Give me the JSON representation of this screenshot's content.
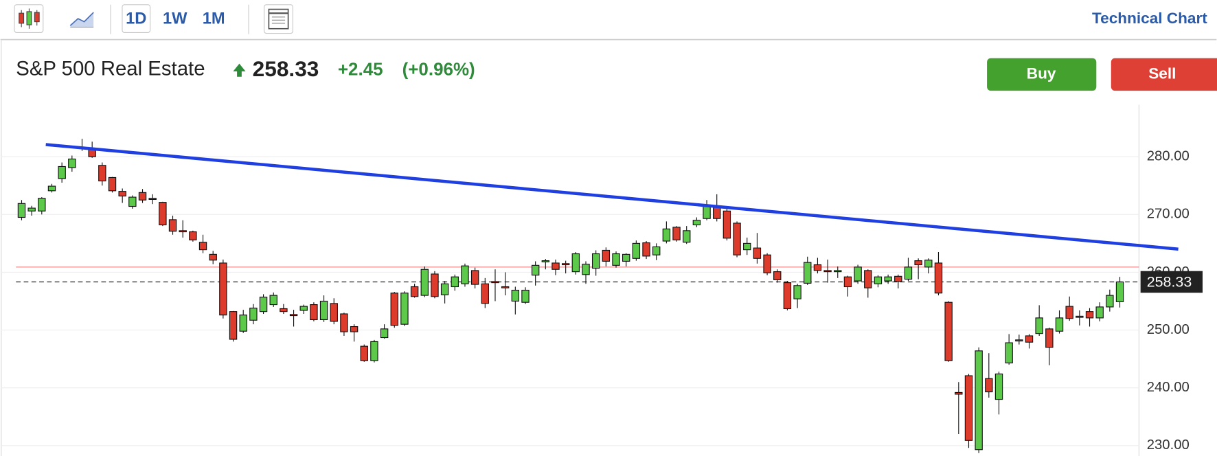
{
  "toolbar": {
    "ranges": [
      "1D",
      "1W",
      "1M"
    ],
    "link": "Technical Chart"
  },
  "header": {
    "name": "S&P 500 Real Estate",
    "change": "+2.45",
    "change_pct": "(+0.96%)"
  },
  "actions": [
    "Buy",
    "Sell"
  ],
  "chart_data": {
    "type": "candlestick",
    "up_color": "#5cc94a",
    "down_color": "#dd3b2c",
    "open": [
      269.5,
      270.6,
      270.6,
      274.1,
      276.2,
      278.1,
      281.6,
      281.3,
      278.5,
      276.4,
      274,
      271.4,
      273.8,
      272.8,
      272.1,
      269.1,
      267.2,
      267,
      265.2,
      263.1,
      261.6,
      253.2,
      249.8,
      251.7,
      253.2,
      254.4,
      253.7,
      252.7,
      253.4,
      254.4,
      251.8,
      254.6,
      252.8,
      250.6,
      247.2,
      244.7,
      248.7,
      256.4,
      251,
      257.5,
      256,
      259.7,
      256.1,
      257.5,
      258,
      260.3,
      258,
      258.4,
      257.5,
      255,
      254.8,
      259.5,
      262,
      261.6,
      261.5,
      260.1,
      259.6,
      260.7,
      263.8,
      261.2,
      261.9,
      262.4,
      265.1,
      263,
      265.4,
      267.8,
      265.2,
      268.2,
      269.3,
      271.5,
      270.6,
      268.5,
      263.9,
      264.2,
      263,
      260.1,
      258.2,
      255.4,
      258.1,
      261.3,
      260.3,
      260.3,
      259.2,
      258.5,
      260.3,
      258,
      258.5,
      259.3,
      258.8,
      262,
      260.9,
      261.6,
      254.8,
      239.2,
      242.1,
      229.3,
      241.6,
      238,
      244.3,
      248.3,
      249,
      249.4,
      250.2,
      249.8,
      254.1,
      252.4,
      253.2,
      252.1,
      254,
      254.9
    ],
    "high": [
      272.5,
      271.5,
      273,
      275.3,
      279,
      280.2,
      283.1,
      282.6,
      279,
      276.5,
      274.5,
      273.3,
      274.4,
      273.5,
      272.2,
      269.8,
      269,
      267.2,
      266.5,
      263.7,
      262.2,
      253.3,
      253.5,
      254.5,
      256.2,
      256.5,
      254.5,
      253.5,
      254.4,
      254.8,
      256,
      255.5,
      253,
      251,
      247.5,
      248.3,
      251,
      256.6,
      256.7,
      258,
      261,
      260.2,
      258.5,
      259.6,
      261.5,
      260.8,
      259,
      260.5,
      260,
      257.5,
      257.4,
      261.9,
      262.3,
      262.2,
      262,
      263.5,
      261.9,
      263.8,
      264.3,
      263.6,
      263.3,
      265.5,
      265.4,
      265,
      268.8,
      268,
      268,
      269.5,
      272.5,
      273.5,
      271.2,
      268.8,
      266,
      266.8,
      263.3,
      260.5,
      258.5,
      258,
      262.7,
      262.5,
      262.2,
      261,
      259.4,
      261.3,
      260.5,
      259.5,
      259.6,
      259.6,
      262.5,
      262.4,
      262.4,
      263.5,
      255,
      241,
      242.4,
      247,
      246,
      242.8,
      249.3,
      249.2,
      249.3,
      254.3,
      250.4,
      253.4,
      255.8,
      253.4,
      253.8,
      254.8,
      257,
      259.2
    ],
    "low": [
      269,
      269.8,
      270,
      273.8,
      275.5,
      277.4,
      281,
      279.8,
      275,
      273.8,
      272,
      271,
      272,
      271.8,
      268,
      266.5,
      266,
      265.3,
      263.3,
      261.4,
      252,
      248,
      249.5,
      251,
      252.8,
      254,
      252.8,
      250.6,
      252.8,
      251.5,
      251.4,
      251,
      249,
      248,
      244.5,
      244.4,
      248.5,
      250.4,
      250.7,
      255.6,
      255.7,
      255.5,
      254.6,
      256.8,
      257.5,
      257.2,
      253.8,
      255,
      256,
      252.7,
      254.5,
      257.7,
      260.5,
      259.5,
      259.8,
      259.6,
      258,
      259.4,
      261,
      260.8,
      261,
      262,
      262.3,
      262.1,
      265,
      265.3,
      264.9,
      267.8,
      269,
      268.8,
      265.5,
      262.6,
      263,
      261.5,
      259.5,
      258.2,
      253.4,
      253.8,
      257.8,
      259.8,
      258.2,
      259,
      255.8,
      258,
      255.6,
      257.4,
      258,
      257.2,
      258.5,
      258.8,
      259.8,
      256,
      244.5,
      232,
      229.6,
      228.7,
      238.3,
      235.4,
      244,
      247.5,
      246.8,
      249,
      243.9,
      249.4,
      251.6,
      250.8,
      250.6,
      251.5,
      253.2,
      253.9
    ],
    "close": [
      271.9,
      271.1,
      272.8,
      274.9,
      278.3,
      279.6,
      281.5,
      280,
      275.8,
      274.1,
      273.2,
      273,
      272.5,
      272.6,
      268.2,
      267.1,
      267,
      265.6,
      263.9,
      262.1,
      252.6,
      248.4,
      252.6,
      253.8,
      255.7,
      256,
      253.2,
      252.6,
      254.1,
      251.8,
      255,
      251.5,
      249.7,
      249.7,
      244.7,
      248,
      250.2,
      250.8,
      256.4,
      255.8,
      260.5,
      255.8,
      258,
      259.2,
      261.1,
      257.9,
      254.6,
      258.3,
      257.4,
      256.9,
      256.9,
      261.2,
      262,
      260.5,
      261.4,
      263.2,
      261.4,
      263.2,
      261.9,
      263.2,
      263.1,
      265,
      262.8,
      264.4,
      267.5,
      265.6,
      267.2,
      269,
      271.5,
      269.3,
      265.9,
      263,
      265,
      262.4,
      259.9,
      258.7,
      253.7,
      257.7,
      261.7,
      260.3,
      260.2,
      260.3,
      257.5,
      260.9,
      257.3,
      259.2,
      259.2,
      258.4,
      260.9,
      261.3,
      262.1,
      256.4,
      244.7,
      238.9,
      230.9,
      246.4,
      239.3,
      242.4,
      247.8,
      248.2,
      247.9,
      252.1,
      247,
      252.1,
      252,
      252.3,
      252.1,
      254,
      256,
      258.33
    ],
    "xlim": [
      -2.1,
      110.9
    ],
    "ylim": [
      228.2,
      289.0
    ],
    "yticks": [
      {
        "value": 230,
        "label": "230.00"
      },
      {
        "value": 240,
        "label": "240.00"
      },
      {
        "value": 250,
        "label": "250.00"
      },
      {
        "value": 260,
        "label": "260.00"
      },
      {
        "value": 270,
        "label": "270.00"
      },
      {
        "value": 280,
        "label": "280.00"
      }
    ],
    "grid": true,
    "last_price": 258.33,
    "reference_line": {
      "value": 260.9,
      "color": "#f08c8c"
    },
    "trendline": {
      "x": [
        2.4,
        114.8
      ],
      "y": [
        282.1,
        264.0
      ],
      "color": "#1f3fe0"
    }
  }
}
